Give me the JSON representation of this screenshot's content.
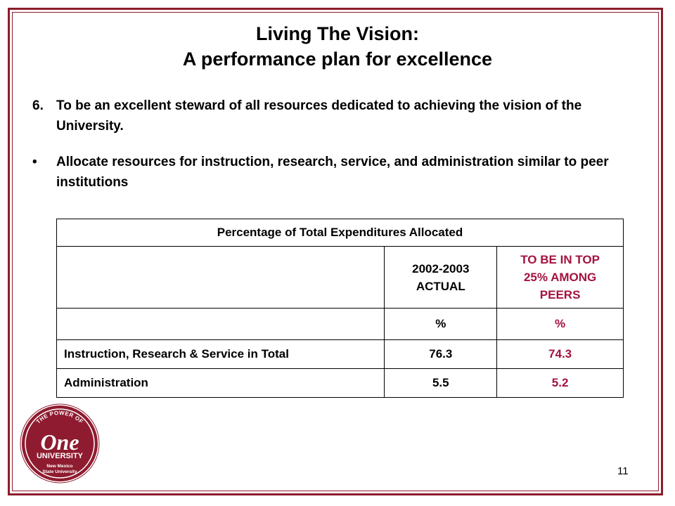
{
  "slide": {
    "title_line1": "Living The Vision:",
    "title_line2": "A performance plan for excellence",
    "point_number": "6.",
    "point_text": "To be an excellent steward of all resources dedicated to achieving the vision of the University.",
    "bullet_symbol": "•",
    "bullet_text": "Allocate resources for instruction, research, service, and administration similar to peer institutions",
    "page_number": "11"
  },
  "table": {
    "caption": "Percentage of Total Expenditures Allocated",
    "col_actual_line1": "2002-2003",
    "col_actual_line2": "ACTUAL",
    "col_target_line1": "TO BE IN TOP",
    "col_target_line2": "25% AMONG",
    "col_target_line3": "PEERS",
    "unit_actual": "%",
    "unit_target": "%",
    "rows": [
      {
        "label": "Instruction, Research & Service in Total",
        "actual": "76.3",
        "target": "74.3"
      },
      {
        "label": "Administration",
        "actual": "5.5",
        "target": "5.2"
      }
    ]
  },
  "logo": {
    "top_text": "THE POWER OF",
    "main_text": "One",
    "sub_text": "UNIVERSITY",
    "line1": "New Mexico",
    "line2": "State University"
  },
  "colors": {
    "frame": "#8c1c2b",
    "accent": "#a4123f",
    "logo_red": "#8e1b2f"
  }
}
